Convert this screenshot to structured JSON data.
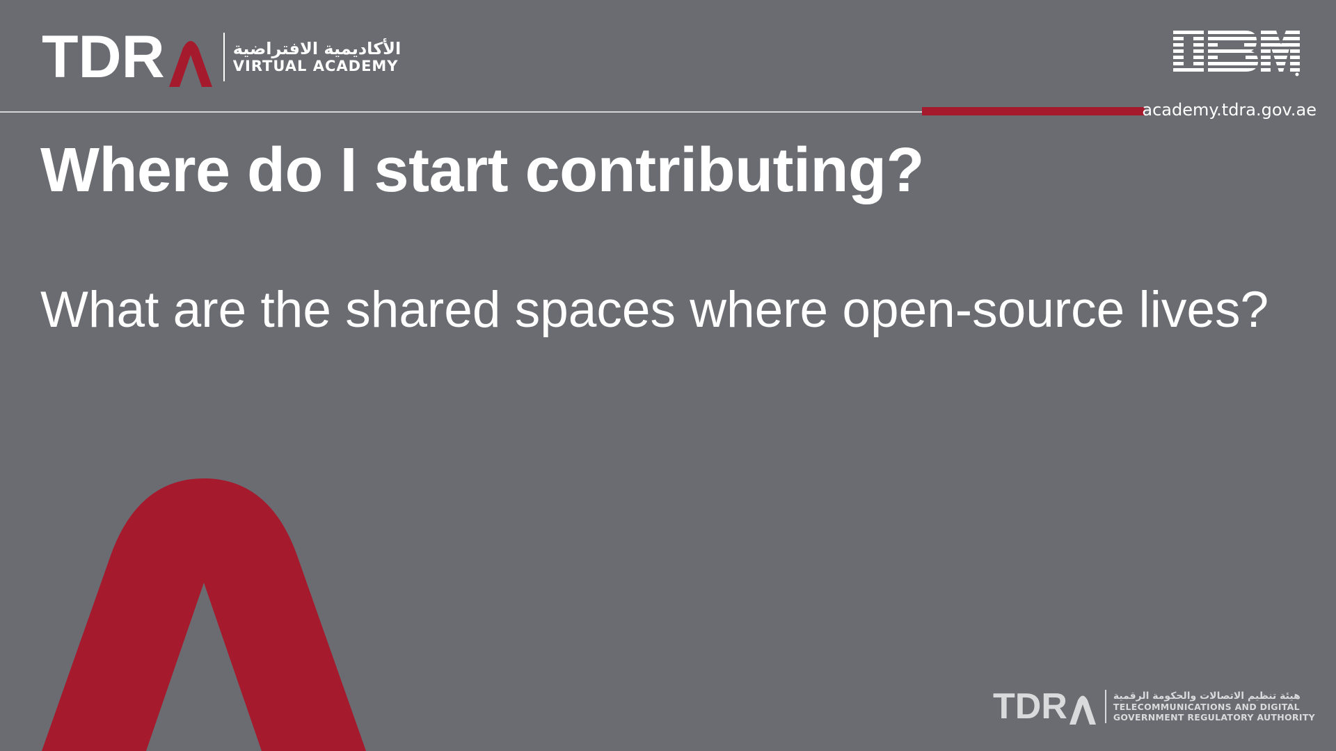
{
  "header": {
    "brand": {
      "wordmark": "TDR",
      "subtitle_ar": "الأكاديمية الافتراضية",
      "subtitle_en": "VIRTUAL ACADEMY"
    },
    "partner_logo": "IBM",
    "url": "academy.tdra.gov.ae"
  },
  "slide": {
    "title": "Where do I start contributing?",
    "subtitle": "What are the shared spaces where open-source lives?"
  },
  "footer": {
    "brand": {
      "wordmark": "TDR",
      "line_ar": "هيئة تنظيم الاتصالات والحكومة الرقمية",
      "line1_en": "TELECOMMUNICATIONS AND DIGITAL",
      "line2_en": "GOVERNMENT REGULATORY AUTHORITY"
    }
  },
  "colors": {
    "background": "#6b6c71",
    "accent": "#a51a2d",
    "text": "#ffffff"
  },
  "icons": {
    "brand_a": "tdra-a-icon",
    "partner": "ibm-logo-icon",
    "decoration": "large-a-decoration"
  }
}
